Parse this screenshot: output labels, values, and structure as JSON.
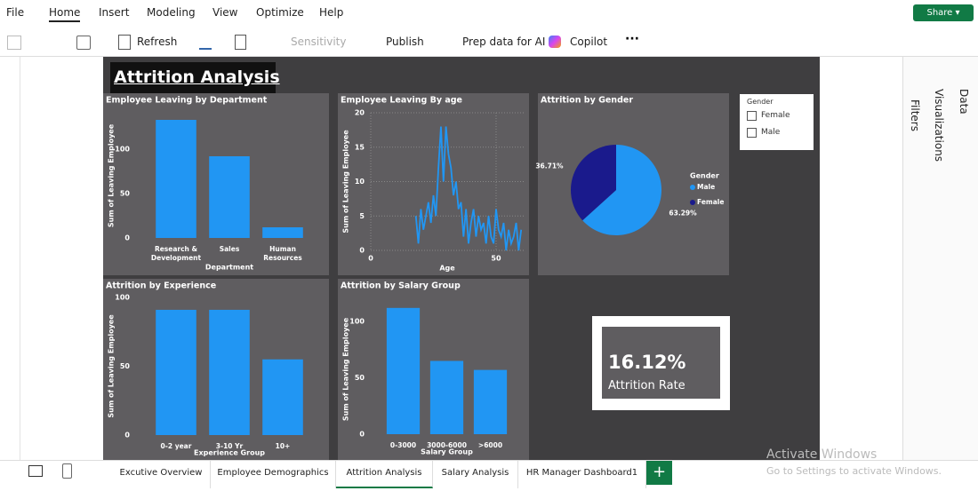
{
  "menu": {
    "items": [
      "File",
      "Home",
      "Insert",
      "Modeling",
      "View",
      "Optimize",
      "Help"
    ],
    "share": "Share"
  },
  "toolbar": {
    "refresh": "Refresh",
    "sensitivity": "Sensitivity",
    "publish": "Publish",
    "prep": "Prep data for AI",
    "copilot": "Copilot"
  },
  "page_title": "Attrition Analysis",
  "chart_data": [
    {
      "type": "bar",
      "title": "Employee Leaving by Department",
      "categories": [
        "Research & Development",
        "Sales",
        "Human Resources"
      ],
      "values": [
        133,
        92,
        12
      ],
      "color": "#2196f3",
      "ylim": [
        0,
        140
      ],
      "yticks": [
        0,
        50,
        100
      ],
      "x_label": "Department",
      "y_label": "Sum of Leaving Employee",
      "grid": false
    },
    {
      "type": "line",
      "title": "Employee Leaving By age",
      "x": [
        18,
        19,
        20,
        21,
        22,
        23,
        24,
        25,
        26,
        27,
        28,
        29,
        30,
        31,
        32,
        33,
        34,
        35,
        36,
        37,
        38,
        39,
        40,
        41,
        42,
        43,
        44,
        45,
        46,
        47,
        48,
        49,
        50,
        51,
        52,
        53,
        54,
        55,
        56,
        57,
        58,
        59,
        60
      ],
      "values": [
        5,
        1,
        6,
        3,
        5,
        7,
        4,
        8,
        5,
        12,
        18,
        10,
        18,
        14,
        12,
        8,
        10,
        6,
        7,
        2,
        6,
        1,
        4,
        6,
        2,
        5,
        3,
        4,
        1,
        5,
        2,
        1,
        6,
        3,
        2,
        4,
        0,
        3,
        1,
        2,
        4,
        0,
        3
      ],
      "color": "#2196f3",
      "xlim": [
        0,
        61
      ],
      "xticks": [
        0,
        50
      ],
      "ylim": [
        0,
        20
      ],
      "yticks": [
        0,
        5,
        10,
        15,
        20
      ],
      "x_label": "Age",
      "y_label": "Sum of Leaving Employee",
      "grid": true
    },
    {
      "type": "pie",
      "title": "Attrition by Gender",
      "legend_title": "Gender",
      "categories": [
        "Male",
        "Female"
      ],
      "values": [
        63.29,
        36.71
      ],
      "value_labels": [
        "63.29%",
        "36.71%"
      ],
      "colors": [
        "#2196f3",
        "#1a1a8c"
      ]
    },
    {
      "type": "bar",
      "title": "Attrition by Experience",
      "categories": [
        "0-2 year",
        "3-10 Yr",
        "10+"
      ],
      "values": [
        91,
        91,
        55
      ],
      "color": "#2196f3",
      "ylim": [
        0,
        100
      ],
      "yticks": [
        0,
        50,
        100
      ],
      "x_label": "Experience Group",
      "y_label": "Sum of Leaving Employee",
      "grid": false
    },
    {
      "type": "bar",
      "title": "Attrition by Salary Group",
      "categories": [
        "0-3000",
        "3000-6000",
        ">6000"
      ],
      "values": [
        112,
        65,
        57
      ],
      "color": "#2196f3",
      "ylim": [
        0,
        115
      ],
      "yticks": [
        0,
        50,
        100
      ],
      "x_label": "Salary Group",
      "y_label": "Sum of Leaving Employee",
      "grid": false
    }
  ],
  "slicer": {
    "title": "Gender",
    "options": [
      "Female",
      "Male"
    ]
  },
  "card": {
    "value": "16.12%",
    "label": "Attrition Rate"
  },
  "panes": [
    "Filters",
    "Visualizations",
    "Data"
  ],
  "tabs": [
    "Excutive Overview",
    "Employee Demographics",
    "Attrition Analysis",
    "Salary Analysis",
    "HR Manager Dashboard1"
  ],
  "watermark": {
    "title": "Activate Windows",
    "text": "Go to Settings to activate Windows."
  }
}
